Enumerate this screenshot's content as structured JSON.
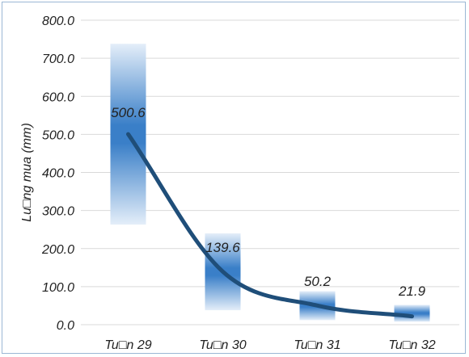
{
  "chart_data": {
    "type": "line",
    "title": "",
    "xlabel": "",
    "ylabel": "Lu□ng mua (mm)",
    "categories": [
      "Tu□n 29",
      "Tu□n 30",
      "Tu□n 31",
      "Tu□n 32"
    ],
    "values": [
      500.6,
      139.6,
      50.2,
      21.9
    ],
    "data_labels": [
      "500.6",
      "139.6",
      "50.2",
      "21.9"
    ],
    "range_bands": [
      {
        "low": 263,
        "high": 738
      },
      {
        "low": 38,
        "high": 240
      },
      {
        "low": 12,
        "high": 88
      },
      {
        "low": 8,
        "high": 52
      }
    ],
    "ylim": [
      0,
      800
    ],
    "yticks": [
      "0.0",
      "100.0",
      "200.0",
      "300.0",
      "400.0",
      "500.0",
      "600.0",
      "700.0",
      "800.0"
    ],
    "grid": true,
    "legend": "none",
    "colors": {
      "line": "#1f4e79",
      "band_center": "#3a7fc8",
      "band_edge": "#dde9f6",
      "grid": "#d9d9d9",
      "frame": "#9bb7d4"
    }
  }
}
